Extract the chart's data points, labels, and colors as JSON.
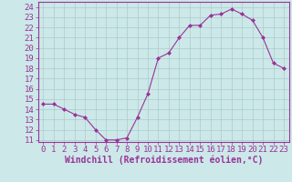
{
  "x": [
    0,
    1,
    2,
    3,
    4,
    5,
    6,
    7,
    8,
    9,
    10,
    11,
    12,
    13,
    14,
    15,
    16,
    17,
    18,
    19,
    20,
    21,
    22,
    23
  ],
  "y": [
    14.5,
    14.5,
    14.0,
    13.5,
    13.2,
    12.0,
    11.0,
    11.0,
    11.2,
    13.2,
    15.5,
    19.0,
    19.5,
    21.0,
    22.2,
    22.2,
    23.2,
    23.3,
    23.8,
    23.3,
    22.7,
    21.0,
    18.5,
    18.0
  ],
  "line_color": "#993399",
  "marker": "D",
  "marker_size": 2,
  "bg_color": "#cce8e8",
  "grid_color": "#aacccc",
  "xlabel": "Windchill (Refroidissement éolien,°C)",
  "xlabel_color": "#993399",
  "xlabel_fontsize": 7,
  "ytick_labels": [
    "11",
    "12",
    "13",
    "14",
    "15",
    "16",
    "17",
    "18",
    "19",
    "20",
    "21",
    "22",
    "23",
    "24"
  ],
  "ytick_values": [
    11,
    12,
    13,
    14,
    15,
    16,
    17,
    18,
    19,
    20,
    21,
    22,
    23,
    24
  ],
  "ylim": [
    10.8,
    24.5
  ],
  "xlim": [
    -0.5,
    23.5
  ],
  "tick_color": "#993399",
  "tick_fontsize": 6.5,
  "axis_color": "#993399",
  "spine_color": "#993399"
}
